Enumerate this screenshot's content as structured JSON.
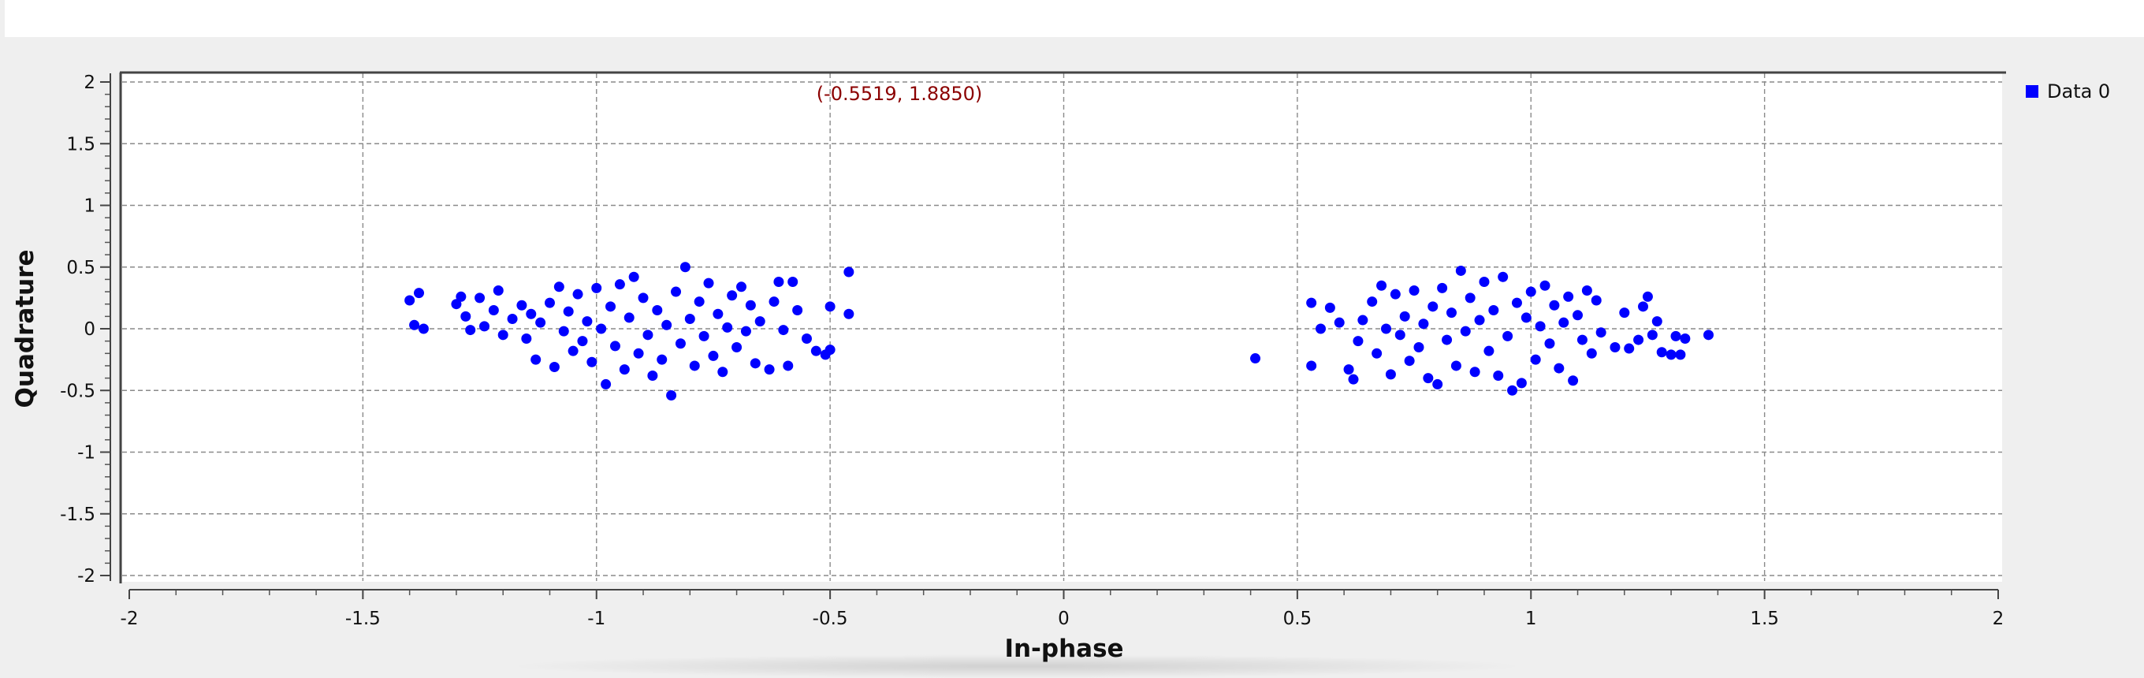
{
  "readout": "(-0.5519, 1.8850)",
  "legend": {
    "items": [
      {
        "label": "Data 0",
        "color": "#0000ff"
      }
    ]
  },
  "chart_data": {
    "type": "scatter",
    "xlabel": "In-phase",
    "ylabel": "Quadrature",
    "xlim": [
      -2,
      2
    ],
    "ylim": [
      -2,
      2
    ],
    "grid": true,
    "legend_position": "right",
    "x_ticks": [
      -2,
      -1.5,
      -1,
      -0.5,
      0,
      0.5,
      1,
      1.5,
      2
    ],
    "y_ticks": [
      -2,
      -1.5,
      -1,
      -0.5,
      0,
      0.5,
      1,
      1.5,
      2
    ],
    "x_tick_labels": [
      "-2",
      "-1.5",
      "-1",
      "-0.5",
      "0",
      "0.5",
      "1",
      "1.5",
      "2"
    ],
    "y_tick_labels": [
      "-2",
      "-1.5",
      "-1",
      "-0.5",
      "0",
      "0.5",
      "1",
      "1.5",
      "2"
    ],
    "series": [
      {
        "name": "Data 0",
        "color": "#0000ff",
        "points": [
          [
            -1.4,
            0.23
          ],
          [
            -1.39,
            0.03
          ],
          [
            -1.38,
            0.29
          ],
          [
            -1.37,
            0.0
          ],
          [
            -1.3,
            0.2
          ],
          [
            -1.29,
            0.26
          ],
          [
            -1.28,
            0.1
          ],
          [
            -1.27,
            -0.01
          ],
          [
            -1.25,
            0.25
          ],
          [
            -1.24,
            0.02
          ],
          [
            -1.22,
            0.15
          ],
          [
            -1.21,
            0.31
          ],
          [
            -1.2,
            -0.05
          ],
          [
            -1.18,
            0.08
          ],
          [
            -1.16,
            0.19
          ],
          [
            -1.15,
            -0.08
          ],
          [
            -1.14,
            0.12
          ],
          [
            -1.13,
            -0.25
          ],
          [
            -1.12,
            0.05
          ],
          [
            -1.1,
            0.21
          ],
          [
            -1.09,
            -0.31
          ],
          [
            -1.08,
            0.34
          ],
          [
            -1.07,
            -0.02
          ],
          [
            -1.06,
            0.14
          ],
          [
            -1.05,
            -0.18
          ],
          [
            -1.04,
            0.28
          ],
          [
            -1.03,
            -0.1
          ],
          [
            -1.02,
            0.06
          ],
          [
            -1.01,
            -0.27
          ],
          [
            -1.0,
            0.33
          ],
          [
            -0.99,
            0.0
          ],
          [
            -0.98,
            -0.45
          ],
          [
            -0.97,
            0.18
          ],
          [
            -0.96,
            -0.14
          ],
          [
            -0.95,
            0.36
          ],
          [
            -0.94,
            -0.33
          ],
          [
            -0.93,
            0.09
          ],
          [
            -0.92,
            0.42
          ],
          [
            -0.91,
            -0.2
          ],
          [
            -0.9,
            0.25
          ],
          [
            -0.89,
            -0.05
          ],
          [
            -0.88,
            -0.38
          ],
          [
            -0.87,
            0.15
          ],
          [
            -0.86,
            -0.25
          ],
          [
            -0.85,
            0.03
          ],
          [
            -0.84,
            -0.54
          ],
          [
            -0.83,
            0.3
          ],
          [
            -0.82,
            -0.12
          ],
          [
            -0.81,
            0.5
          ],
          [
            -0.8,
            0.08
          ],
          [
            -0.79,
            -0.3
          ],
          [
            -0.78,
            0.22
          ],
          [
            -0.77,
            -0.06
          ],
          [
            -0.76,
            0.37
          ],
          [
            -0.75,
            -0.22
          ],
          [
            -0.74,
            0.12
          ],
          [
            -0.73,
            -0.35
          ],
          [
            -0.72,
            0.01
          ],
          [
            -0.71,
            0.27
          ],
          [
            -0.7,
            -0.15
          ],
          [
            -0.69,
            0.34
          ],
          [
            -0.68,
            -0.02
          ],
          [
            -0.67,
            0.19
          ],
          [
            -0.66,
            -0.28
          ],
          [
            -0.65,
            0.06
          ],
          [
            -0.63,
            -0.33
          ],
          [
            -0.62,
            0.22
          ],
          [
            -0.61,
            0.38
          ],
          [
            -0.6,
            -0.01
          ],
          [
            -0.59,
            -0.3
          ],
          [
            -0.58,
            0.38
          ],
          [
            -0.57,
            0.15
          ],
          [
            -0.55,
            -0.08
          ],
          [
            -0.53,
            -0.18
          ],
          [
            -0.51,
            -0.21
          ],
          [
            -0.5,
            0.18
          ],
          [
            -0.5,
            -0.17
          ],
          [
            -0.46,
            0.46
          ],
          [
            -0.46,
            0.12
          ],
          [
            0.41,
            -0.24
          ],
          [
            0.53,
            0.21
          ],
          [
            0.53,
            -0.3
          ],
          [
            0.55,
            0.0
          ],
          [
            0.57,
            0.17
          ],
          [
            0.59,
            0.05
          ],
          [
            0.61,
            -0.33
          ],
          [
            0.62,
            -0.41
          ],
          [
            0.63,
            -0.1
          ],
          [
            0.64,
            0.07
          ],
          [
            0.66,
            0.22
          ],
          [
            0.67,
            -0.2
          ],
          [
            0.68,
            0.35
          ],
          [
            0.69,
            0.0
          ],
          [
            0.7,
            -0.37
          ],
          [
            0.71,
            0.28
          ],
          [
            0.72,
            -0.05
          ],
          [
            0.73,
            0.1
          ],
          [
            0.74,
            -0.26
          ],
          [
            0.75,
            0.31
          ],
          [
            0.76,
            -0.15
          ],
          [
            0.77,
            0.04
          ],
          [
            0.78,
            -0.4
          ],
          [
            0.79,
            0.18
          ],
          [
            0.8,
            -0.45
          ],
          [
            0.81,
            0.33
          ],
          [
            0.82,
            -0.09
          ],
          [
            0.83,
            0.13
          ],
          [
            0.84,
            -0.3
          ],
          [
            0.85,
            0.47
          ],
          [
            0.86,
            -0.02
          ],
          [
            0.87,
            0.25
          ],
          [
            0.88,
            -0.35
          ],
          [
            0.89,
            0.07
          ],
          [
            0.9,
            0.38
          ],
          [
            0.91,
            -0.18
          ],
          [
            0.92,
            0.15
          ],
          [
            0.93,
            -0.38
          ],
          [
            0.94,
            0.42
          ],
          [
            0.95,
            -0.06
          ],
          [
            0.96,
            -0.5
          ],
          [
            0.97,
            0.21
          ],
          [
            0.98,
            -0.44
          ],
          [
            0.99,
            0.09
          ],
          [
            1.0,
            0.3
          ],
          [
            1.01,
            -0.25
          ],
          [
            1.02,
            0.02
          ],
          [
            1.03,
            0.35
          ],
          [
            1.04,
            -0.12
          ],
          [
            1.05,
            0.19
          ],
          [
            1.06,
            -0.32
          ],
          [
            1.07,
            0.05
          ],
          [
            1.08,
            0.26
          ],
          [
            1.09,
            -0.42
          ],
          [
            1.1,
            0.11
          ],
          [
            1.11,
            -0.09
          ],
          [
            1.12,
            0.31
          ],
          [
            1.13,
            -0.2
          ],
          [
            1.14,
            0.23
          ],
          [
            1.15,
            -0.03
          ],
          [
            1.18,
            -0.15
          ],
          [
            1.2,
            0.13
          ],
          [
            1.21,
            -0.16
          ],
          [
            1.23,
            -0.09
          ],
          [
            1.24,
            0.18
          ],
          [
            1.25,
            0.26
          ],
          [
            1.26,
            -0.05
          ],
          [
            1.27,
            0.06
          ],
          [
            1.28,
            -0.19
          ],
          [
            1.3,
            -0.21
          ],
          [
            1.31,
            -0.06
          ],
          [
            1.32,
            -0.21
          ],
          [
            1.33,
            -0.08
          ],
          [
            1.38,
            -0.05
          ]
        ]
      }
    ]
  }
}
